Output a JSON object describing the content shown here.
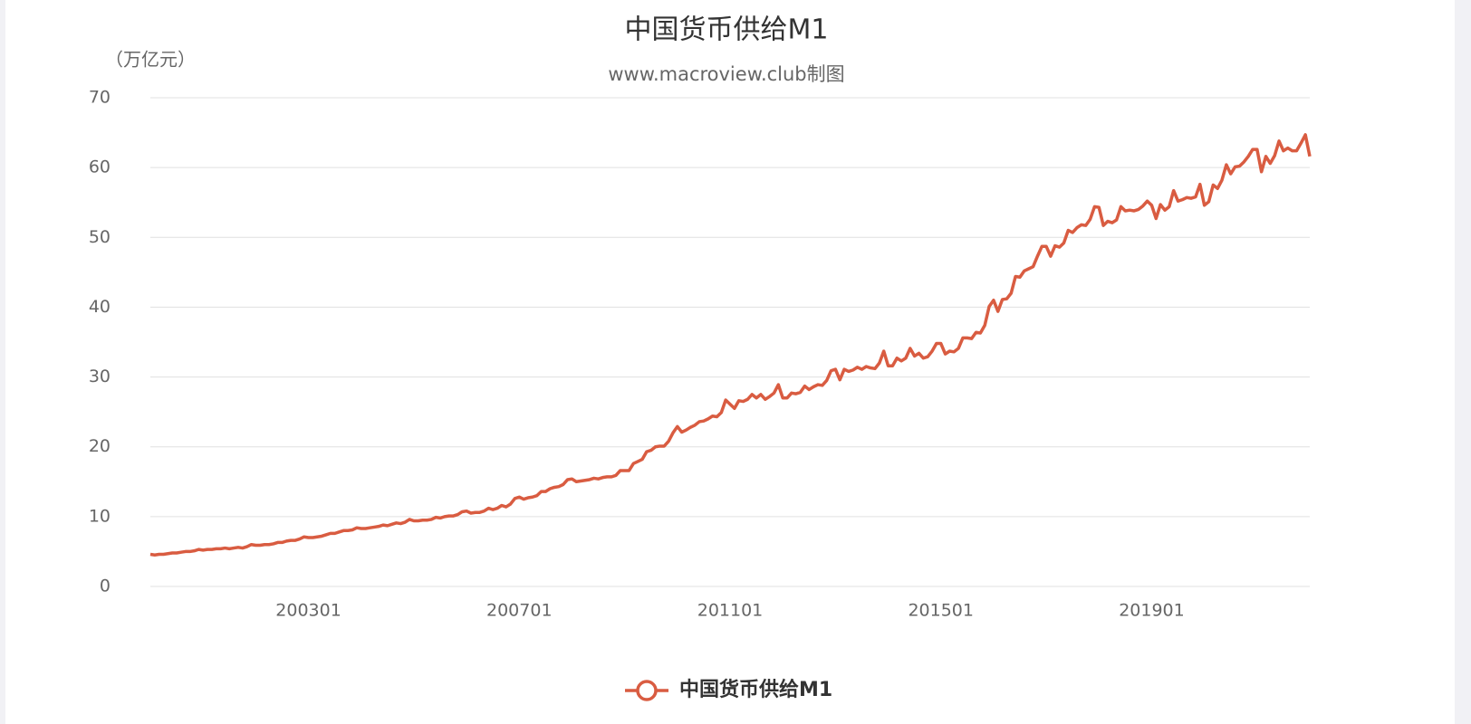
{
  "chart_data": {
    "type": "line",
    "title": "中国货币供给M1",
    "subtitle": "www.macroview.club制图",
    "y_axis_label": "（万亿元）",
    "categories": [
      null,
      null,
      null,
      null,
      null,
      null,
      null,
      null,
      null,
      null,
      null,
      null,
      null,
      null,
      null,
      null,
      null,
      null,
      null,
      null,
      null,
      null,
      null,
      null,
      null,
      null,
      null,
      null,
      null,
      null,
      null,
      null,
      null,
      null,
      null,
      null,
      "200301",
      null,
      null,
      null,
      null,
      null,
      null,
      null,
      null,
      null,
      null,
      null,
      null,
      null,
      null,
      null,
      null,
      null,
      null,
      null,
      null,
      null,
      null,
      null,
      null,
      null,
      null,
      null,
      null,
      null,
      null,
      null,
      null,
      null,
      null,
      null,
      null,
      null,
      null,
      null,
      null,
      null,
      null,
      null,
      null,
      null,
      null,
      null,
      "200701",
      null,
      null,
      null,
      null,
      null,
      null,
      null,
      null,
      null,
      null,
      null,
      null,
      null,
      null,
      null,
      null,
      null,
      null,
      null,
      null,
      null,
      null,
      null,
      null,
      null,
      null,
      null,
      null,
      null,
      null,
      null,
      null,
      null,
      null,
      null,
      null,
      null,
      null,
      null,
      null,
      null,
      null,
      null,
      null,
      null,
      null,
      null,
      "201101",
      null,
      null,
      null,
      null,
      null,
      null,
      null,
      null,
      null,
      null,
      null,
      null,
      null,
      null,
      null,
      null,
      null,
      null,
      null,
      null,
      null,
      null,
      null,
      null,
      null,
      null,
      null,
      null,
      null,
      null,
      null,
      null,
      null,
      null,
      null,
      null,
      null,
      null,
      null,
      null,
      null,
      null,
      null,
      null,
      null,
      null,
      null,
      "201501",
      null,
      null,
      null,
      null,
      null,
      null,
      null,
      null,
      null,
      null,
      null,
      null,
      null,
      null,
      null,
      null,
      null,
      null,
      null,
      null,
      null,
      null,
      null,
      null,
      null,
      null,
      null,
      null,
      null,
      null,
      null,
      null,
      null,
      null,
      null,
      null,
      null,
      null,
      null,
      null,
      null,
      null,
      null,
      null,
      null,
      null,
      null,
      "201901",
      null,
      null,
      null,
      null,
      null,
      null,
      null,
      null,
      null,
      null,
      null,
      null,
      null,
      null,
      null,
      null,
      null,
      null,
      null,
      null,
      null,
      null,
      null,
      null,
      null,
      null,
      null,
      null,
      null,
      null,
      null,
      null,
      null,
      null,
      null,
      null
    ],
    "series": [
      {
        "name": "中国货币供给M1",
        "color": "#d95c41",
        "values": [
          4.6,
          4.5,
          4.6,
          4.6,
          4.7,
          4.8,
          4.8,
          4.9,
          5.0,
          5.0,
          5.1,
          5.3,
          5.2,
          5.3,
          5.3,
          5.4,
          5.4,
          5.5,
          5.4,
          5.5,
          5.6,
          5.5,
          5.7,
          6.0,
          5.9,
          5.9,
          6.0,
          6.0,
          6.1,
          6.3,
          6.3,
          6.5,
          6.6,
          6.6,
          6.8,
          7.1,
          7.0,
          7.0,
          7.1,
          7.2,
          7.4,
          7.6,
          7.6,
          7.8,
          8.0,
          8.0,
          8.1,
          8.4,
          8.3,
          8.3,
          8.4,
          8.5,
          8.6,
          8.8,
          8.7,
          8.9,
          9.1,
          9.0,
          9.2,
          9.6,
          9.4,
          9.4,
          9.5,
          9.5,
          9.6,
          9.9,
          9.8,
          10.0,
          10.1,
          10.1,
          10.3,
          10.7,
          10.8,
          10.5,
          10.6,
          10.6,
          10.8,
          11.2,
          11.0,
          11.2,
          11.6,
          11.4,
          11.8,
          12.6,
          12.8,
          12.5,
          12.7,
          12.8,
          13.0,
          13.6,
          13.6,
          14.0,
          14.2,
          14.3,
          14.6,
          15.3,
          15.4,
          15.0,
          15.1,
          15.2,
          15.3,
          15.5,
          15.4,
          15.6,
          15.7,
          15.7,
          15.9,
          16.6,
          16.6,
          16.6,
          17.6,
          17.9,
          18.2,
          19.3,
          19.5,
          20.0,
          20.1,
          20.1,
          20.8,
          22.0,
          22.9,
          22.1,
          22.4,
          22.8,
          23.1,
          23.6,
          23.7,
          24.0,
          24.4,
          24.3,
          24.9,
          26.7,
          26.1,
          25.5,
          26.6,
          26.5,
          26.8,
          27.5,
          27.0,
          27.5,
          26.8,
          27.2,
          27.7,
          28.9,
          27.0,
          27.0,
          27.7,
          27.6,
          27.8,
          28.7,
          28.2,
          28.6,
          28.9,
          28.8,
          29.5,
          30.9,
          31.1,
          29.6,
          31.1,
          30.8,
          31.0,
          31.4,
          31.1,
          31.5,
          31.3,
          31.2,
          32.0,
          33.7,
          31.6,
          31.6,
          32.7,
          32.3,
          32.7,
          34.1,
          33.0,
          33.4,
          32.7,
          32.9,
          33.7,
          34.8,
          34.8,
          33.3,
          33.7,
          33.6,
          34.1,
          35.6,
          35.6,
          35.5,
          36.4,
          36.3,
          37.4,
          40.1,
          41.0,
          39.4,
          41.1,
          41.2,
          42.0,
          44.4,
          44.3,
          45.2,
          45.5,
          45.8,
          47.3,
          48.7,
          48.7,
          47.3,
          48.8,
          48.6,
          49.2,
          51.0,
          50.7,
          51.4,
          51.8,
          51.7,
          52.6,
          54.4,
          54.3,
          51.7,
          52.3,
          52.1,
          52.5,
          54.4,
          53.8,
          53.9,
          53.8,
          54.0,
          54.5,
          55.2,
          54.6,
          52.7,
          54.7,
          53.9,
          54.4,
          56.7,
          55.2,
          55.4,
          55.7,
          55.6,
          55.8,
          57.6,
          54.6,
          55.1,
          57.5,
          57.0,
          58.2,
          60.4,
          59.1,
          60.1,
          60.2,
          60.8,
          61.6,
          62.6,
          62.6,
          59.4,
          61.6,
          60.6,
          61.7,
          63.8,
          62.4,
          62.8,
          62.4,
          62.4,
          63.5,
          64.7,
          61.6
        ]
      }
    ],
    "ylim": [
      0,
      70
    ],
    "yticks": [
      0,
      10,
      20,
      30,
      40,
      50,
      60,
      70
    ],
    "grid": true,
    "legend": "bottom"
  }
}
